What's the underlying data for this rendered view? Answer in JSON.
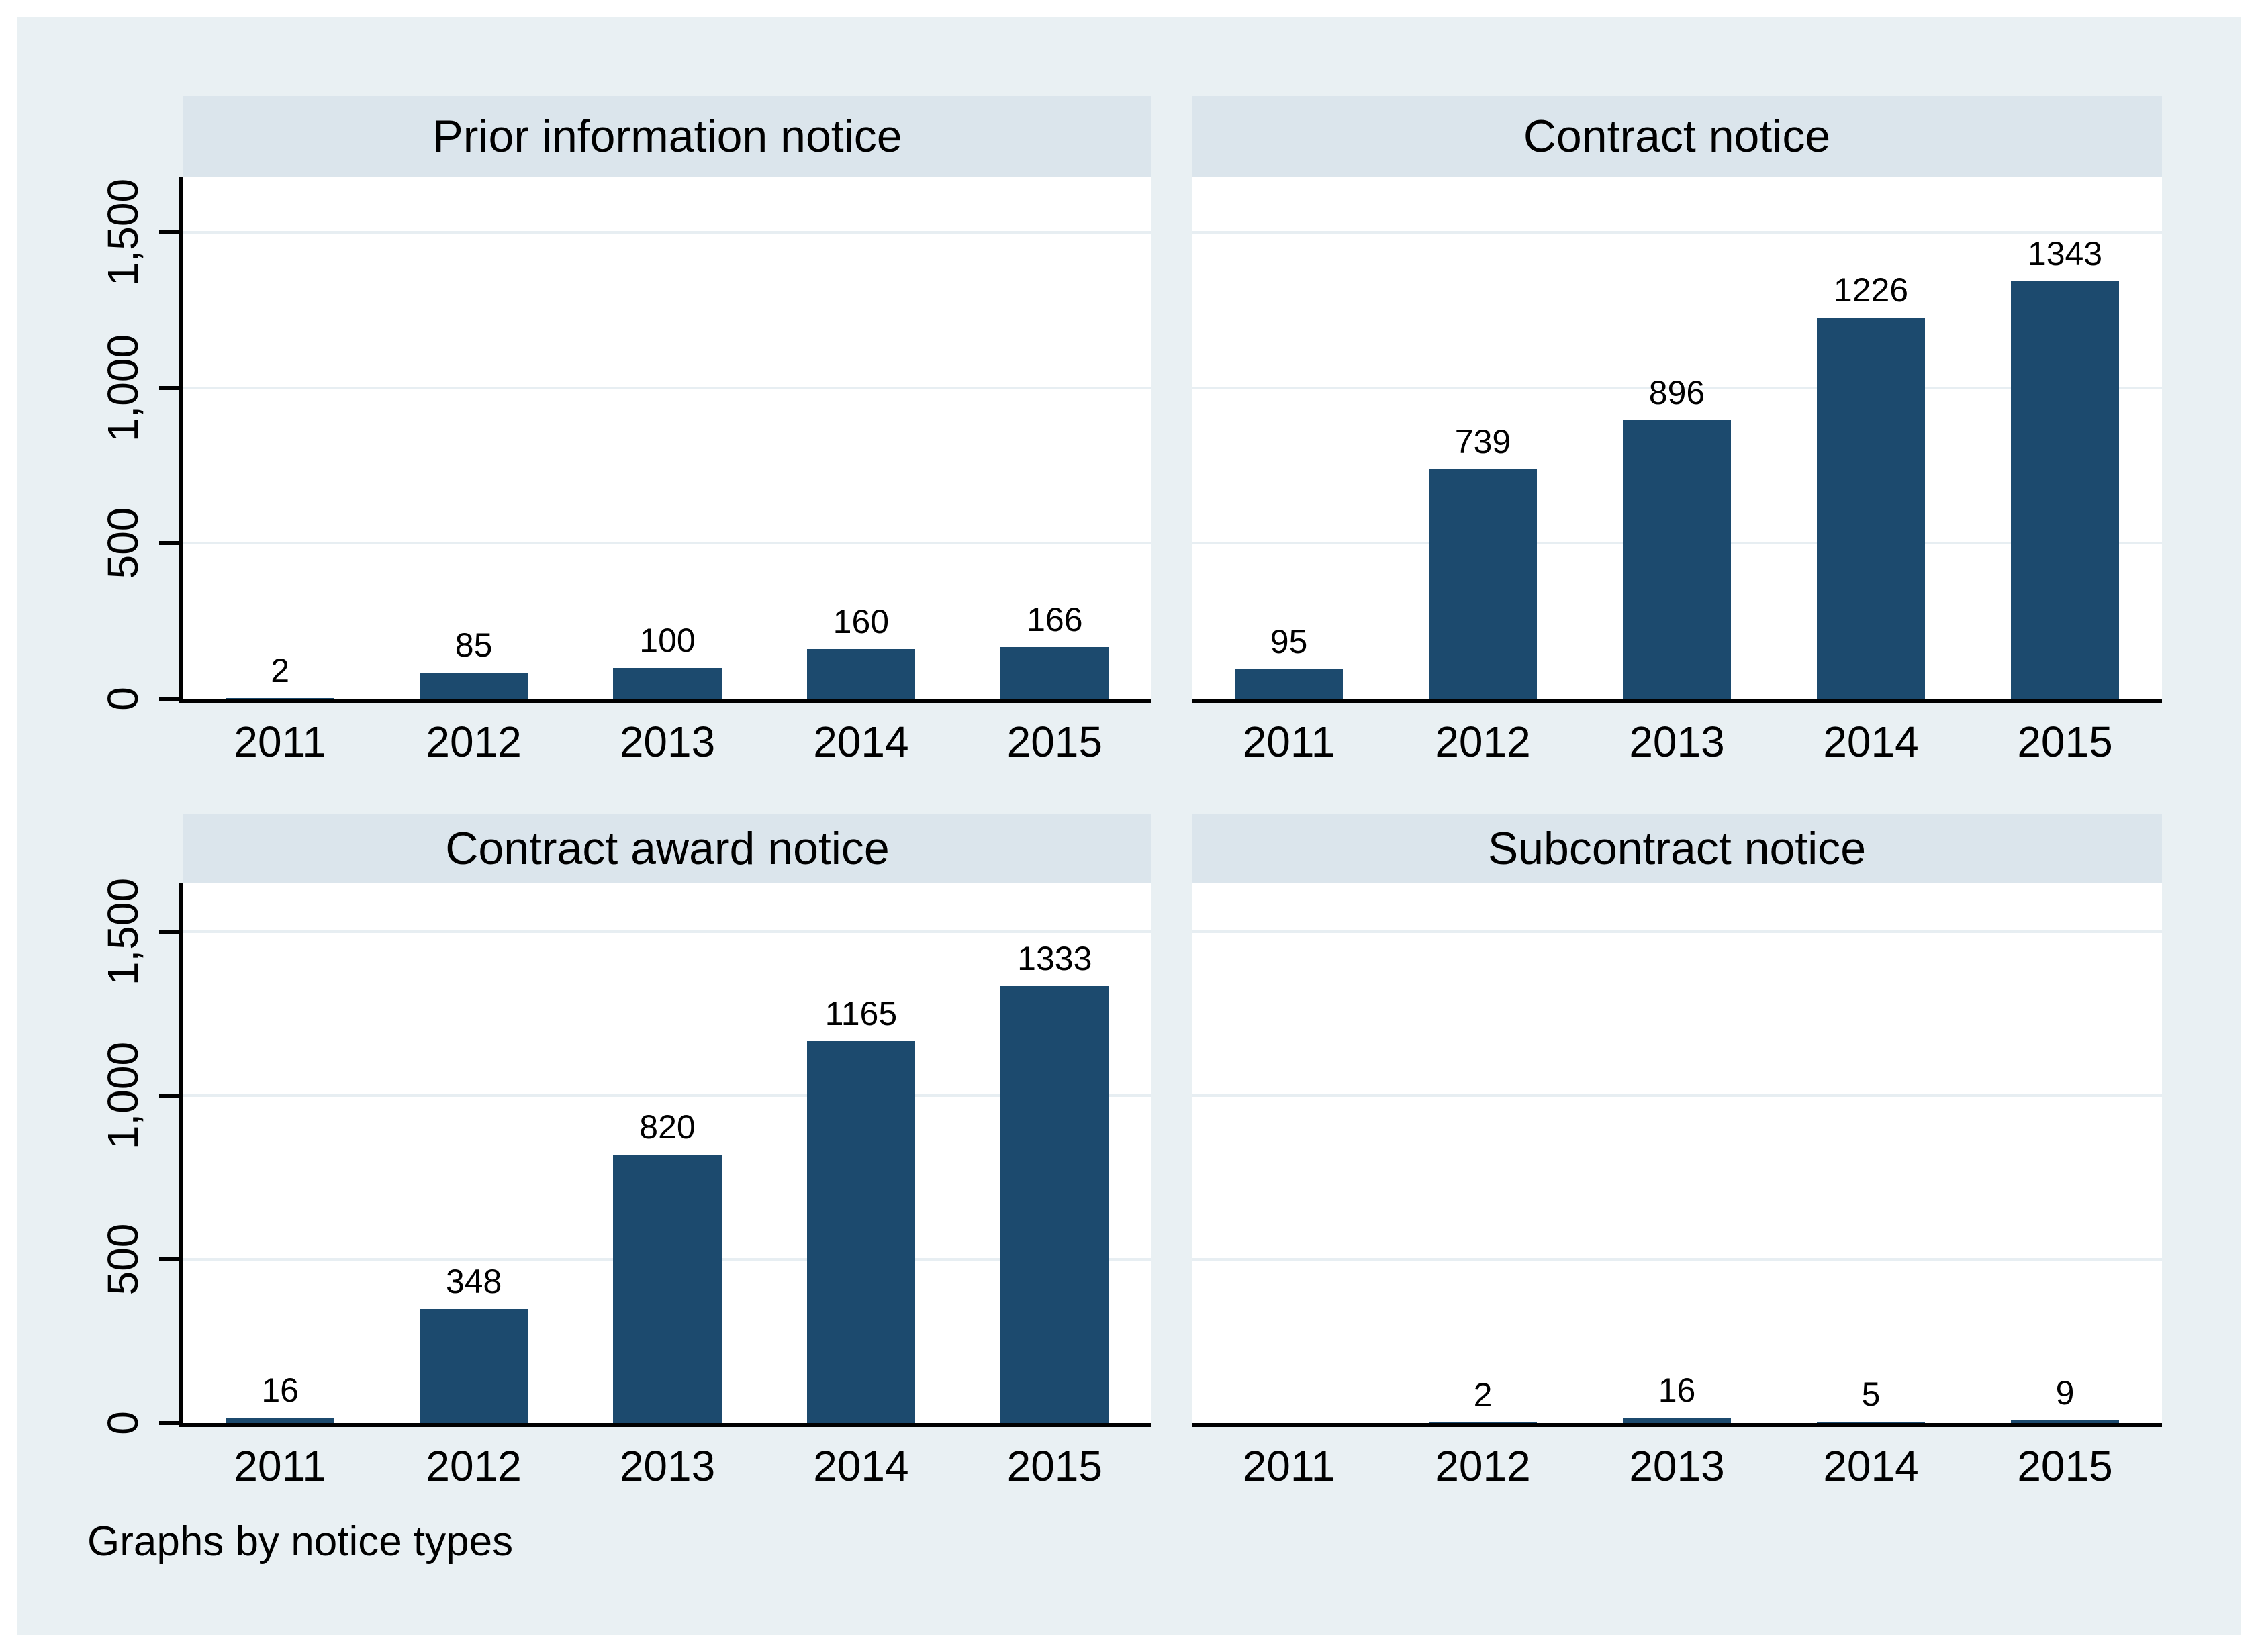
{
  "caption": "Graphs by notice types",
  "colors": {
    "bar": "#1c4a6e",
    "outer_background": "#e9f0f3",
    "title_strip_background": "#dbe5ec",
    "gridline": "#e7eef2",
    "axis": "#000000",
    "plot_background": "#ffffff"
  },
  "y_axis": {
    "tick_values": [
      0,
      500,
      1000,
      1500
    ],
    "tick_labels": [
      "0",
      "500",
      "1,000",
      "1,500"
    ],
    "label_rotation_deg": -90
  },
  "chart_data": [
    {
      "type": "bar",
      "title": "Prior information notice",
      "categories": [
        "2011",
        "2012",
        "2013",
        "2014",
        "2015"
      ],
      "values": [
        2,
        85,
        100,
        160,
        166
      ],
      "value_labels": [
        "2",
        "85",
        "100",
        "160",
        "166"
      ],
      "xlabel": "",
      "ylabel": "",
      "ylim": [
        0,
        1680
      ],
      "grid": true,
      "legend": "none"
    },
    {
      "type": "bar",
      "title": "Contract notice",
      "categories": [
        "2011",
        "2012",
        "2013",
        "2014",
        "2015"
      ],
      "values": [
        95,
        739,
        896,
        1226,
        1343
      ],
      "value_labels": [
        "95",
        "739",
        "896",
        "1226",
        "1343"
      ],
      "xlabel": "",
      "ylabel": "",
      "ylim": [
        0,
        1680
      ],
      "grid": true,
      "legend": "none"
    },
    {
      "type": "bar",
      "title": "Contract award notice",
      "categories": [
        "2011",
        "2012",
        "2013",
        "2014",
        "2015"
      ],
      "values": [
        16,
        348,
        820,
        1165,
        1333
      ],
      "value_labels": [
        "16",
        "348",
        "820",
        "1165",
        "1333"
      ],
      "xlabel": "",
      "ylabel": "",
      "ylim": [
        0,
        1680
      ],
      "grid": true,
      "legend": "none"
    },
    {
      "type": "bar",
      "title": "Subcontract notice",
      "categories": [
        "2011",
        "2012",
        "2013",
        "2014",
        "2015"
      ],
      "values": [
        null,
        2,
        16,
        5,
        9
      ],
      "value_labels": [
        null,
        "2",
        "16",
        "5",
        "9"
      ],
      "xlabel": "",
      "ylabel": "",
      "ylim": [
        0,
        1680
      ],
      "grid": true,
      "legend": "none"
    }
  ]
}
